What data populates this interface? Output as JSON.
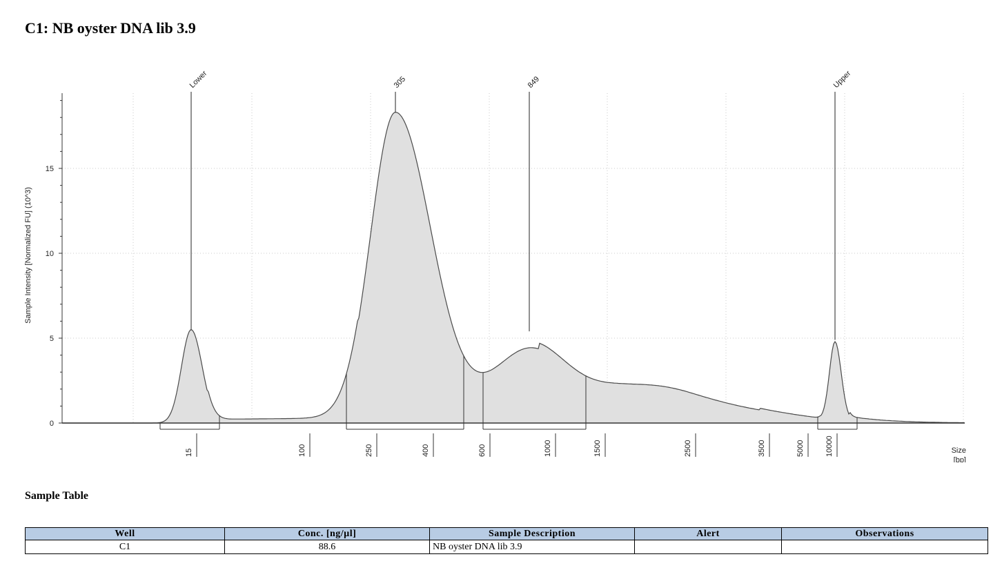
{
  "page": {
    "title": "C1: NB oyster DNA lib 3.9"
  },
  "chart_data": {
    "type": "area",
    "ylabel": "Sample Intensity [Normalized FU] (10^3)",
    "xlabel": [
      "Size",
      "[bp]"
    ],
    "y_ticks": [
      0,
      5,
      10,
      15
    ],
    "y_range": [
      0,
      19.5
    ],
    "x_tick_labels": [
      "15",
      "100",
      "250",
      "400",
      "600",
      "1000",
      "1500",
      "2500",
      "3500",
      "5000",
      "10000"
    ],
    "peaks": [
      {
        "label": "Lower",
        "size": 15,
        "intensity": 5.5
      },
      {
        "label": "305",
        "size": 305,
        "intensity": 18.3
      },
      {
        "label": "849",
        "size": 849,
        "intensity": 5.4
      },
      {
        "label": "Upper",
        "size": 10000,
        "intensity": 4.9
      }
    ],
    "regions": [
      {
        "from": 15,
        "to": 15
      },
      {
        "from": 250,
        "to": 600
      },
      {
        "from": 600,
        "to": 1500
      },
      {
        "from": 10000,
        "to": 10000
      }
    ],
    "fill_color": "#e0e0e0",
    "line_color": "#4a4a4a",
    "grid": "dotted"
  },
  "sample_table": {
    "title": "Sample Table",
    "headers": [
      "Well",
      "Conc. [ng/µl]",
      "Sample Description",
      "Alert",
      "Observations"
    ],
    "rows": [
      {
        "well": "C1",
        "conc": "88.6",
        "description": "NB oyster DNA lib 3.9",
        "alert": "",
        "observations": ""
      }
    ]
  }
}
